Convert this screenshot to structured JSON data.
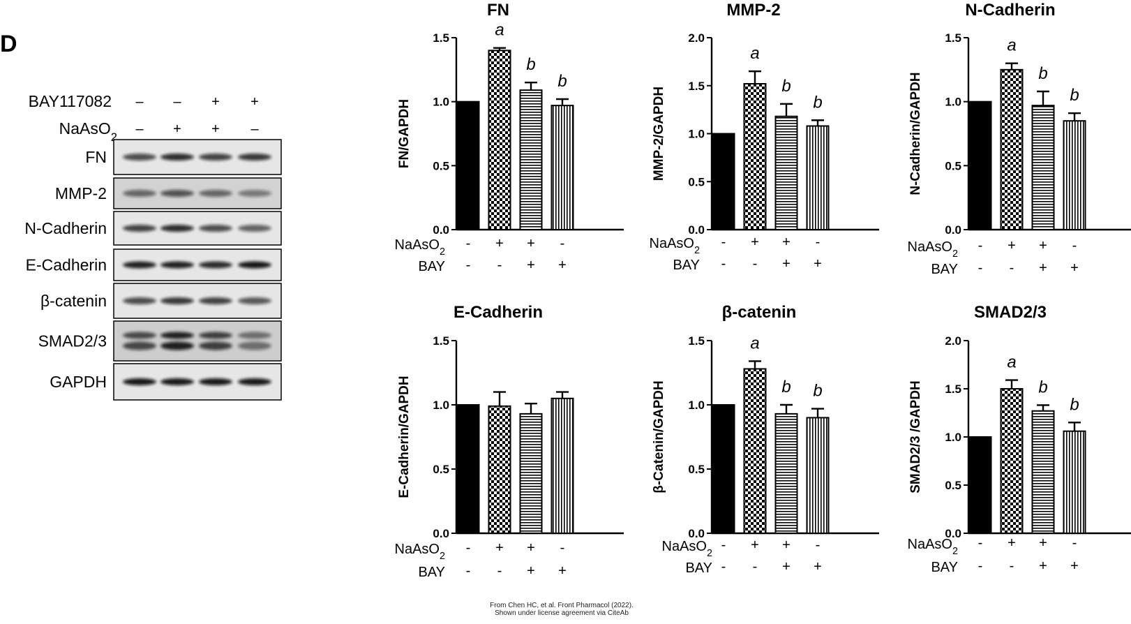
{
  "panel_letter": "D",
  "blot": {
    "header_rows": [
      {
        "label": "BAY117082",
        "signs": [
          "–",
          "–",
          "+",
          "+"
        ]
      },
      {
        "label": "NaAsO",
        "label_sub": "2",
        "signs": [
          "–",
          "+",
          "+",
          "–"
        ]
      }
    ],
    "bands": [
      {
        "label": "FN",
        "intensity": [
          0.7,
          0.85,
          0.75,
          0.8
        ],
        "doublet": false
      },
      {
        "label": "MMP-2",
        "intensity": [
          0.55,
          0.65,
          0.55,
          0.45
        ],
        "doublet": false
      },
      {
        "label": "N-Cadherin",
        "intensity": [
          0.75,
          0.85,
          0.7,
          0.6
        ],
        "doublet": false
      },
      {
        "label": "E-Cadherin",
        "intensity": [
          0.9,
          0.9,
          0.85,
          0.95
        ],
        "doublet": false
      },
      {
        "label": "β-catenin",
        "intensity": [
          0.7,
          0.8,
          0.75,
          0.65
        ],
        "doublet": false
      },
      {
        "label": "SMAD2/3",
        "intensity": [
          0.7,
          0.9,
          0.75,
          0.5
        ],
        "doublet": true
      },
      {
        "label": "GAPDH",
        "intensity": [
          0.95,
          0.95,
          0.95,
          0.95
        ],
        "doublet": false
      }
    ]
  },
  "chart_data": [
    {
      "type": "bar",
      "title": "FN",
      "ylabel": "FN/GAPDH",
      "ylim": [
        0,
        1.5
      ],
      "yticks": [
        "0.0",
        "0.5",
        "1.0",
        "1.5"
      ],
      "values": [
        1.0,
        1.4,
        1.09,
        0.97
      ],
      "errors": [
        0,
        0.02,
        0.06,
        0.05
      ],
      "annotations": [
        "",
        "a",
        "b",
        "b"
      ],
      "conditions": [
        {
          "name": "NaAsO",
          "name_sub": "2",
          "signs": [
            "-",
            "+",
            "+",
            "-"
          ]
        },
        {
          "name": "BAY",
          "signs": [
            "-",
            "-",
            "+",
            "+"
          ]
        }
      ]
    },
    {
      "type": "bar",
      "title": "MMP-2",
      "ylabel": "MMP-2/GAPDH",
      "ylim": [
        0,
        2.0
      ],
      "yticks": [
        "0.0",
        "0.5",
        "1.0",
        "1.5",
        "2.0"
      ],
      "values": [
        1.0,
        1.52,
        1.18,
        1.08
      ],
      "errors": [
        0,
        0.13,
        0.13,
        0.06
      ],
      "annotations": [
        "",
        "a",
        "b",
        "b"
      ],
      "conditions": [
        {
          "name": "NaAsO",
          "name_sub": "2",
          "signs": [
            "-",
            "+",
            "+",
            "-"
          ]
        },
        {
          "name": "BAY",
          "signs": [
            "-",
            "-",
            "+",
            "+"
          ]
        }
      ]
    },
    {
      "type": "bar",
      "title": "N-Cadherin",
      "ylabel": "N-Cadherin/GAPDH",
      "ylim": [
        0,
        1.5
      ],
      "yticks": [
        "0.0",
        "0.5",
        "1.0",
        "1.5"
      ],
      "values": [
        1.0,
        1.25,
        0.97,
        0.85
      ],
      "errors": [
        0,
        0.05,
        0.11,
        0.06
      ],
      "annotations": [
        "",
        "a",
        "b",
        "b"
      ],
      "conditions": [
        {
          "name": "NaAsO",
          "name_sub": "2",
          "signs": [
            "-",
            "+",
            "+",
            "-"
          ]
        },
        {
          "name": "BAY",
          "signs": [
            "-",
            "-",
            "+",
            "+"
          ]
        }
      ]
    },
    {
      "type": "bar",
      "title": "E-Cadherin",
      "ylabel": "E-Cadherin/GAPDH",
      "ylim": [
        0,
        1.5
      ],
      "yticks": [
        "0.0",
        "0.5",
        "1.0",
        "1.5"
      ],
      "values": [
        1.0,
        0.99,
        0.93,
        1.05
      ],
      "errors": [
        0,
        0.11,
        0.08,
        0.05
      ],
      "annotations": [
        "",
        "",
        "",
        ""
      ],
      "conditions": [
        {
          "name": "NaAsO",
          "name_sub": "2",
          "signs": [
            "-",
            "+",
            "+",
            "-"
          ]
        },
        {
          "name": "BAY",
          "signs": [
            "-",
            "-",
            "+",
            "+"
          ]
        }
      ]
    },
    {
      "type": "bar",
      "title": "β-catenin",
      "ylabel": "β-Catenin/GAPDH",
      "ylim": [
        0,
        1.5
      ],
      "yticks": [
        "0.0",
        "0.5",
        "1.0",
        "1.5"
      ],
      "values": [
        1.0,
        1.28,
        0.93,
        0.9
      ],
      "errors": [
        0,
        0.06,
        0.07,
        0.07
      ],
      "annotations": [
        "",
        "a",
        "b",
        "b"
      ],
      "conditions": [
        {
          "name": "NaAsO",
          "name_sub": "2",
          "signs": [
            "-",
            "+",
            "+",
            "-"
          ]
        },
        {
          "name": "BAY",
          "signs": [
            "-",
            "-",
            "+",
            "+"
          ]
        }
      ]
    },
    {
      "type": "bar",
      "title": "SMAD2/3",
      "ylabel": "SMAD2/3 /GAPDH",
      "ylim": [
        0,
        2.0
      ],
      "yticks": [
        "0.0",
        "0.5",
        "1.0",
        "1.5",
        "2.0"
      ],
      "values": [
        1.0,
        1.5,
        1.27,
        1.06
      ],
      "errors": [
        0,
        0.09,
        0.06,
        0.09
      ],
      "annotations": [
        "",
        "a",
        "b",
        "b"
      ],
      "conditions": [
        {
          "name": "NaAsO",
          "name_sub": "2",
          "signs": [
            "-",
            "+",
            "+",
            "-"
          ]
        },
        {
          "name": "BAY",
          "signs": [
            "-",
            "-",
            "+",
            "+"
          ]
        }
      ]
    }
  ],
  "credit": {
    "line1": "From Chen HC, et al. Front Pharmacol (2022).",
    "line2": "Shown under license agreement via CiteAb"
  }
}
